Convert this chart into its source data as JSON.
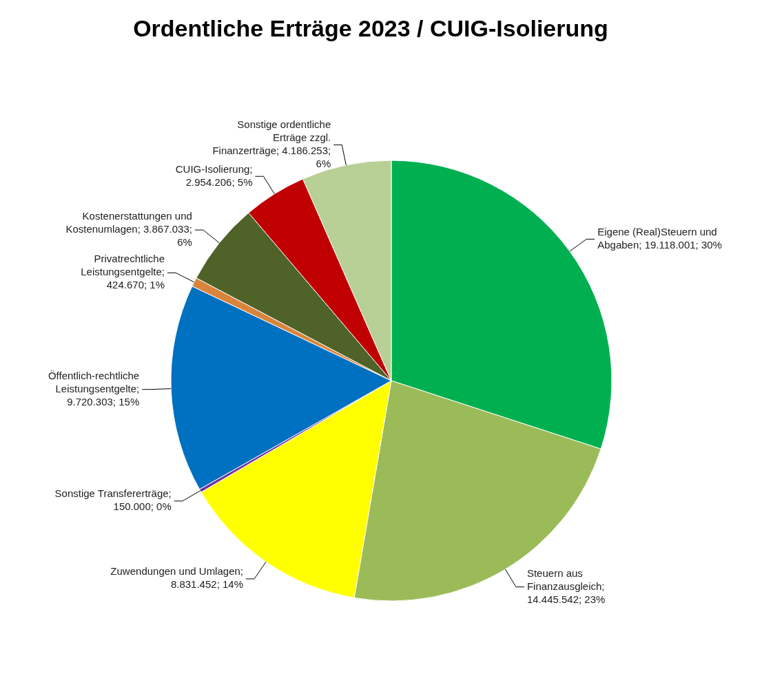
{
  "chart_data": {
    "type": "pie",
    "title": "Ordentliche Erträge 2023 / CUIG-Isolierung",
    "categories": [
      "Eigene (Real)Steuern und Abgaben",
      "Steuern aus Finanzausgleich",
      "Zuwendungen und Umlagen",
      "Sonstige Transfererträge",
      "Öffentlich-rechtliche Leistungsentgelte",
      "Privatrechtliche Leistungsentgelte",
      "Kostenerstattungen und Kostenumlagen",
      "CUIG-Isolierung",
      "Sonstige ordentliche Erträge zzgl. Finanzerträge"
    ],
    "values": [
      19118001,
      14445542,
      8831452,
      150000,
      9720303,
      424670,
      3867033,
      2954206,
      4186253
    ],
    "value_labels": [
      "; 19.118.001; 30%",
      "; 14.445.542; 23%",
      "; 8.831.452; 14%",
      "; 150.000; 0%",
      "; 9.720.303; 15%",
      "; 424.670; 1%",
      "; 3.867.033; 6%",
      "; 2.954.206; 5%",
      "; 4.186.253; 6%"
    ],
    "colors": [
      "#00b050",
      "#9bbb59",
      "#ffff00",
      "#7030a0",
      "#0070c0",
      "#d9843b",
      "#4f6228",
      "#c00000",
      "#b8cf96"
    ],
    "legend": false
  }
}
